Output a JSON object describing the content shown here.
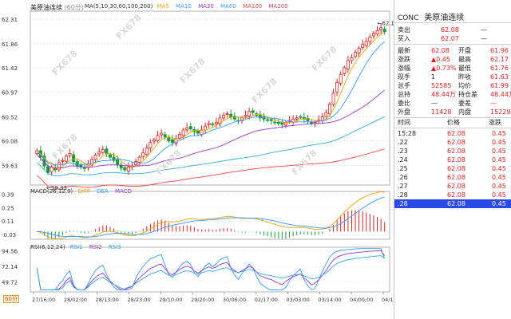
{
  "header": {
    "symbol_name": "美原油连续",
    "period": "60分",
    "ma_label": "MA(5,10,30,60,100,200)",
    "ma_lines": [
      {
        "name": "MA5",
        "color": "#f0a000"
      },
      {
        "name": "MA10",
        "color": "#3399ff"
      },
      {
        "name": "MA30",
        "color": "#9933cc"
      },
      {
        "name": "MA60",
        "color": "#33aadd"
      },
      {
        "name": "MA100",
        "color": "#ee4444"
      },
      {
        "name": "MA200",
        "color": "#d04060"
      }
    ]
  },
  "watermark": {
    "text": "FX678",
    "cn": "汇通网"
  },
  "chart_data": [
    {
      "type": "candlestick",
      "title": "美原油连续",
      "ylim": [
        59.33,
        62.31
      ],
      "ytick_labels": [
        "62.31",
        "61.86",
        "61.42",
        "60.97",
        "60.52",
        "60.08",
        "59.63"
      ],
      "yticks": [
        62.31,
        61.86,
        61.42,
        60.97,
        60.52,
        60.08,
        59.63
      ],
      "xtick_labels": [
        "27/16:00",
        "28/02:00",
        "28/13:00",
        "28/23:00",
        "29/10:00",
        "29/20:00",
        "30/06:00",
        "02/17:00",
        "03/03:00",
        "03/14:00",
        "04/00:00",
        "04/11:00"
      ],
      "annotations": [
        {
          "text": "←59.33",
          "value": 59.33
        },
        {
          "text": "←62.17",
          "value": 62.17
        }
      ],
      "close_series": [
        59.9,
        59.78,
        59.62,
        59.5,
        59.6,
        59.55,
        59.68,
        59.72,
        59.8,
        59.85,
        59.7,
        59.62,
        59.6,
        59.58,
        59.66,
        59.74,
        59.82,
        59.88,
        59.92,
        59.85,
        59.78,
        59.72,
        59.65,
        59.58,
        59.55,
        59.6,
        59.62,
        59.7,
        59.78,
        59.86,
        59.95,
        60.05,
        60.1,
        60.18,
        60.22,
        60.15,
        60.08,
        60.05,
        60.12,
        60.2,
        60.28,
        60.32,
        60.3,
        60.25,
        60.22,
        60.28,
        60.35,
        60.4,
        60.38,
        60.42,
        60.5,
        60.55,
        60.58,
        60.52,
        60.48,
        60.45,
        60.5,
        60.55,
        60.62,
        60.6,
        60.55,
        60.5,
        60.48,
        60.46,
        60.45,
        60.42,
        60.4,
        60.38,
        60.42,
        60.45,
        60.48,
        60.5,
        60.52,
        60.48,
        60.45,
        60.4,
        60.42,
        60.46,
        60.52,
        60.6,
        60.75,
        60.95,
        61.15,
        61.3,
        61.42,
        61.55,
        61.6,
        61.7,
        61.78,
        61.85,
        61.9,
        61.98,
        62.05,
        62.1,
        62.15,
        62.08
      ],
      "macd": {
        "label": "MACD(26,12,9)",
        "series_names": [
          "DIFF",
          "DEA",
          "MACD"
        ],
        "ytick_labels": [
          "0.39",
          "0.25",
          "0.11",
          "-0.03"
        ],
        "ylim": [
          -0.08,
          0.42
        ]
      },
      "rsi": {
        "label": "RSI(6,12,24)",
        "series_names": [
          "RSI1",
          "RSI2",
          "RSI3"
        ],
        "ytick_labels": [
          "94.56",
          "72.14",
          "49.72"
        ],
        "ylim": [
          35,
          100
        ]
      }
    }
  ],
  "quote": {
    "code": "CONC",
    "name": "美原油连续",
    "sell_label": "卖出",
    "sell": "62.08",
    "sell_vol": "—",
    "buy_label": "买入",
    "buy": "62.07",
    "buy_vol": "—",
    "rows": [
      {
        "l1": "最新",
        "v1": "62.08",
        "l2": "开盘",
        "v2": "61.96"
      },
      {
        "l1": "涨跌",
        "v1": "▲0.45",
        "l2": "最高",
        "v2": "62.17"
      },
      {
        "l1": "涨幅",
        "v1": "▲0.73%",
        "l2": "最低",
        "v2": "61.76"
      },
      {
        "l1": "现手",
        "v1": "1",
        "l2": "昨收",
        "v2": "61.63"
      },
      {
        "l1": "总手",
        "v1": "52585",
        "l2": "均价",
        "v2": "61.99"
      },
      {
        "l1": "总持",
        "v1": "48.44万",
        "l2": "持仓差",
        "v2": "48.44万"
      },
      {
        "l1": "委比",
        "v1": "—",
        "l2": "委差",
        "v2": "—"
      },
      {
        "l1": "外盘",
        "v1": "11428",
        "l2": "内盘",
        "v2": "15229"
      }
    ],
    "trade_headers": {
      "time": "时间",
      "price": "价格",
      "chg": "涨跌"
    },
    "trades": [
      {
        "time": "15:28",
        "price": "62.08",
        "chg": "0.45"
      },
      {
        "time": ".22",
        "price": "62.08",
        "chg": "0.45"
      },
      {
        "time": ".23",
        "price": "62.08",
        "chg": "0.45"
      },
      {
        "time": ".24",
        "price": "62.08",
        "chg": "0.45"
      },
      {
        "time": ".25",
        "price": "62.08",
        "chg": "0.45"
      },
      {
        "time": ".26",
        "price": "62.08",
        "chg": "0.45"
      },
      {
        "time": ".27",
        "price": "62.08",
        "chg": "0.45"
      },
      {
        "time": ".28",
        "price": "62.08",
        "chg": "0.45"
      },
      {
        "time": ".28",
        "price": "62.08",
        "chg": "0.45"
      }
    ]
  }
}
